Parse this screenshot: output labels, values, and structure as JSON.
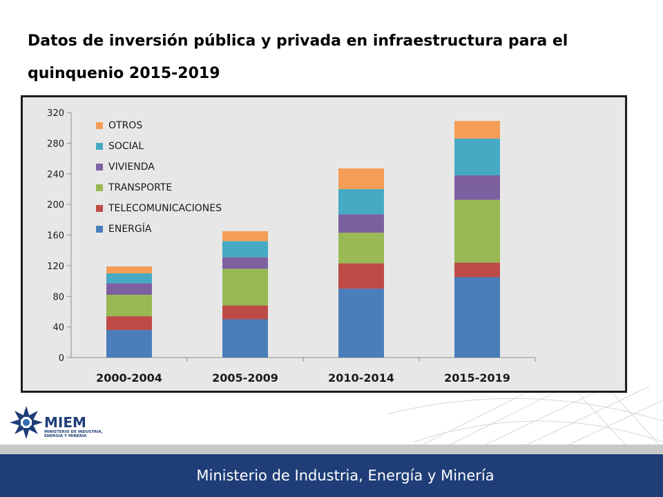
{
  "slide": {
    "title": "Datos de inversión pública y privada en infraestructura para el quinquenio 2015-2019"
  },
  "logo": {
    "name": "MIEM",
    "subtitle": "MINISTERIO DE INDUSTRIA, ENERGÍA Y MINERÍA"
  },
  "footer": {
    "text": "Ministerio de Industria, Energía y Minería"
  },
  "chart_data": {
    "type": "bar",
    "stacked": true,
    "title": "",
    "xlabel": "",
    "ylabel": "",
    "ylim": [
      0,
      320
    ],
    "yticks": [
      0,
      40,
      80,
      120,
      160,
      200,
      240,
      280,
      320
    ],
    "grid": false,
    "legend_position": "top-left",
    "categories": [
      "2000-2004",
      "2005-2009",
      "2010-2014",
      "2015-2019"
    ],
    "series": [
      {
        "name": "ENERGÍA",
        "color": "#4a7ebb",
        "values": [
          36,
          50,
          90,
          105
        ]
      },
      {
        "name": "TELECOMUNICACIONES",
        "color": "#be4b48",
        "values": [
          18,
          18,
          33,
          19
        ]
      },
      {
        "name": "TRANSPORTE",
        "color": "#98b954",
        "values": [
          28,
          48,
          40,
          82
        ]
      },
      {
        "name": "VIVIENDA",
        "color": "#7d60a0",
        "values": [
          15,
          15,
          24,
          32
        ]
      },
      {
        "name": "SOCIAL",
        "color": "#46aac5",
        "values": [
          13,
          21,
          33,
          48
        ]
      },
      {
        "name": "OTROS",
        "color": "#f59d56",
        "values": [
          9,
          13,
          27,
          23
        ]
      }
    ]
  }
}
